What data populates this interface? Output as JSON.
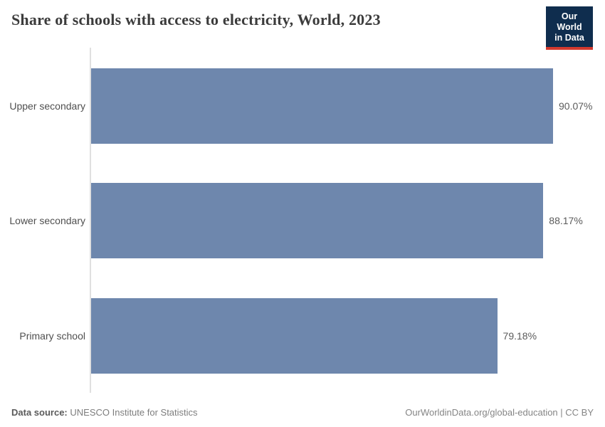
{
  "header": {
    "title": "Share of schools with access to electricity, World, 2023",
    "logo": {
      "line1": "Our World",
      "line2": "in Data",
      "bg_color": "#0f2d4e",
      "accent_color": "#d3392e"
    }
  },
  "chart": {
    "bar_color": "#6e87ad",
    "max_value": 90.07,
    "bars": [
      {
        "label": "Upper secondary",
        "value": 90.07,
        "display": "90.07%"
      },
      {
        "label": "Lower secondary",
        "value": 88.17,
        "display": "88.17%"
      },
      {
        "label": "Primary school",
        "value": 79.18,
        "display": "79.18%"
      }
    ]
  },
  "chart_data": {
    "type": "bar",
    "orientation": "horizontal",
    "title": "Share of schools with access to electricity, World, 2023",
    "categories": [
      "Upper secondary",
      "Lower secondary",
      "Primary school"
    ],
    "values": [
      90.07,
      88.17,
      79.18
    ],
    "data_labels": [
      "90.07%",
      "88.17%",
      "79.18%"
    ],
    "xlabel": "",
    "ylabel": "",
    "xlim": [
      0,
      90.07
    ],
    "grid": false,
    "legend": false,
    "bar_color": "#6e87ad"
  },
  "footer": {
    "source_label": "Data source:",
    "source_value": "UNESCO Institute for Statistics",
    "right_text": "OurWorldinData.org/global-education | CC BY"
  }
}
